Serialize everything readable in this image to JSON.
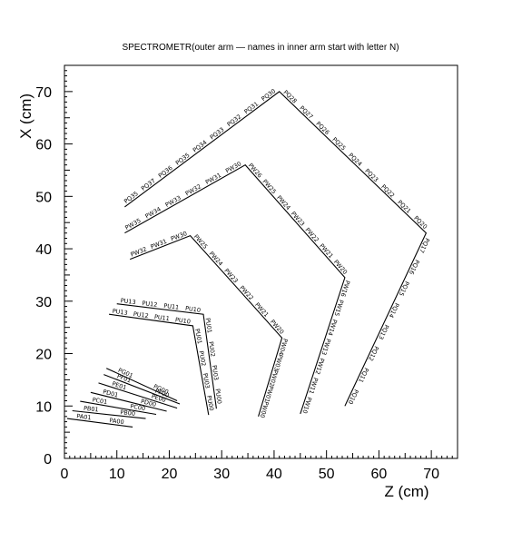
{
  "title": "SPECTROMETR(outer arm — names in inner arm start with letter N)",
  "chart_data": {
    "type": "diagram",
    "title": "SPECTROMETR(outer arm — names in inner arm start with letter N)",
    "xlabel": "Z (cm)",
    "ylabel": "X (cm)",
    "xlim": [
      0,
      75
    ],
    "ylim": [
      0,
      75
    ],
    "x_ticks": [
      0,
      10,
      20,
      30,
      40,
      50,
      60,
      70
    ],
    "y_ticks": [
      0,
      10,
      20,
      30,
      40,
      50,
      60,
      70
    ],
    "segments": [
      {
        "name": "PR01-PR00-PL00",
        "x_label": "Z",
        "points": [
          [
            20.0,
            10.0
          ],
          [
            18.0,
            11.5
          ],
          [
            16.0,
            12.5
          ],
          [
            14.0,
            13.5
          ],
          [
            11.5,
            14.5
          ],
          [
            9.0,
            15.5
          ],
          [
            7.5,
            16.5
          ]
        ],
        "labels": [
          "PR01",
          "PR00",
          "PL00"
        ]
      },
      {
        "name": "chamber-P-G",
        "points": [
          [
            20.7,
            8.9
          ],
          [
            19.6,
            9.4
          ]
        ]
      },
      {
        "name": "P-outer-1",
        "points": [
          [
            1.0,
            7.9
          ],
          [
            13.0,
            6.0
          ]
        ],
        "labels": [
          "PA01",
          "PA00"
        ]
      },
      {
        "name": "P-outer-2",
        "points": [
          [
            2.0,
            9.2
          ],
          [
            14.5,
            7.4
          ]
        ],
        "labels": [
          "PB01",
          "PB00"
        ]
      },
      {
        "name": "P-outer-3",
        "points": [
          [
            3.5,
            10.9
          ],
          [
            16.5,
            8.4
          ]
        ],
        "labels": [
          "PC01",
          "PC00"
        ]
      },
      {
        "name": "P-outer-4",
        "points": [
          [
            5.0,
            12.6
          ],
          [
            18.5,
            9.0
          ]
        ],
        "labels": [
          "PD01",
          "PD00"
        ]
      },
      {
        "name": "P-outer-5",
        "points": [
          [
            6.5,
            14.4
          ],
          [
            20.5,
            9.5
          ]
        ],
        "labels": [
          "PE01",
          "PE00"
        ]
      },
      {
        "name": "P-outer-6",
        "points": [
          [
            8.0,
            16.0
          ],
          [
            22.0,
            10.1
          ]
        ],
        "labels": [
          "PF01",
          "PF00"
        ]
      },
      {
        "name": "P-outer-7",
        "points": [
          [
            8.3,
            17.2
          ],
          [
            21.5,
            10.8
          ]
        ],
        "labels": [
          "PG01",
          "PG00"
        ]
      }
    ],
    "labels_text": {
      "p_cluster": [
        "PA01",
        "PA00",
        "PB01",
        "PB00",
        "PC01",
        "PC00",
        "PD01",
        "PD00",
        "PE01",
        "PE00",
        "PF01",
        "PF00",
        "PG01",
        "PG00"
      ],
      "u_upper": [
        "PU13",
        "PU12",
        "PU11",
        "PU10"
      ],
      "u_lower": [
        "PU13",
        "PU12",
        "PU11",
        "PU10"
      ],
      "u_down_1": [
        "PU01",
        "PU02",
        "PU03",
        "PU00"
      ],
      "u_down_2": [
        "PU01",
        "PU02",
        "PU03",
        "PU00"
      ],
      "w_row_1": [
        "PW35",
        "PW34",
        "PW33",
        "PW32",
        "PW31",
        "PW30"
      ],
      "w_row_1b": [
        "PW32",
        "PW31",
        "PW30"
      ],
      "w_diag": [
        "PW26",
        "PW25",
        "PW24",
        "PW23",
        "PW22",
        "PW21",
        "PW20"
      ],
      "w_diag_b": [
        "PW25",
        "PW24",
        "PW23",
        "PW22",
        "PW21",
        "PW20"
      ],
      "w_down": [
        "PW16",
        "PW15",
        "PW14",
        "PW13",
        "PW12",
        "PW11",
        "PW10"
      ],
      "w_down_b": [
        "PW04",
        "PW03",
        "PW02",
        "PW01",
        "PW00"
      ],
      "q_row": [
        "PQ35",
        "PQ37",
        "PQ36",
        "PQ35",
        "PQ34",
        "PQ33",
        "PQ32",
        "PQ31",
        "PQ30"
      ],
      "q_diag": [
        "PQ28",
        "PQ27",
        "PQ26",
        "PQ25",
        "PQ24",
        "PQ23",
        "PQ22",
        "PQ21",
        "PQ20"
      ],
      "q_down": [
        "PQ17",
        "PQ16",
        "PQ15",
        "PQ14",
        "PQ13",
        "PQ12",
        "PQ11",
        "PQ10"
      ],
      "q_down_b": [
        "PQ05",
        "PQ04",
        "PQ03",
        "PQ02",
        "PQ01",
        "PQ00"
      ]
    }
  }
}
